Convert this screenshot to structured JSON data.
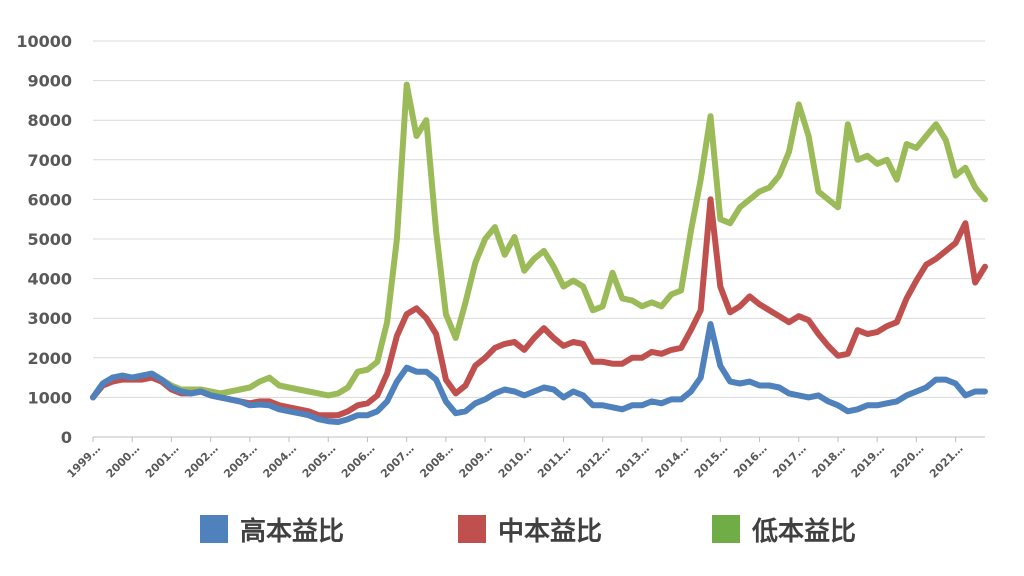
{
  "chart_data": {
    "type": "line",
    "title": "",
    "xlabel": "",
    "ylabel": "",
    "ylim": [
      0,
      10000
    ],
    "yticks": [
      0,
      1000,
      2000,
      3000,
      4000,
      5000,
      6000,
      7000,
      8000,
      9000,
      10000
    ],
    "xlim": [
      1999.0,
      2021.75
    ],
    "xtick_labels": [
      "1999…",
      "2000…",
      "2001…",
      "2002…",
      "2003…",
      "2004…",
      "2005…",
      "2006…",
      "2007…",
      "2008…",
      "2009…",
      "2010…",
      "2011…",
      "2012…",
      "2013…",
      "2014…",
      "2015…",
      "2016…",
      "2017…",
      "2018…",
      "2019…",
      "2020…",
      "2021…"
    ],
    "grid": true,
    "legend_position": "bottom",
    "x": [
      1999.0,
      1999.25,
      1999.5,
      1999.75,
      2000.0,
      2000.25,
      2000.5,
      2000.75,
      2001.0,
      2001.25,
      2001.5,
      2001.75,
      2002.0,
      2002.25,
      2002.5,
      2002.75,
      2003.0,
      2003.25,
      2003.5,
      2003.75,
      2004.0,
      2004.25,
      2004.5,
      2004.75,
      2005.0,
      2005.25,
      2005.5,
      2005.75,
      2006.0,
      2006.25,
      2006.5,
      2006.75,
      2007.0,
      2007.25,
      2007.5,
      2007.75,
      2008.0,
      2008.25,
      2008.5,
      2008.75,
      2009.0,
      2009.25,
      2009.5,
      2009.75,
      2010.0,
      2010.25,
      2010.5,
      2010.75,
      2011.0,
      2011.25,
      2011.5,
      2011.75,
      2012.0,
      2012.25,
      2012.5,
      2012.75,
      2013.0,
      2013.25,
      2013.5,
      2013.75,
      2014.0,
      2014.25,
      2014.5,
      2014.75,
      2015.0,
      2015.25,
      2015.5,
      2015.75,
      2016.0,
      2016.25,
      2016.5,
      2016.75,
      2017.0,
      2017.25,
      2017.5,
      2017.75,
      2018.0,
      2018.25,
      2018.5,
      2018.75,
      2019.0,
      2019.25,
      2019.5,
      2019.75,
      2020.0,
      2020.25,
      2020.5,
      2020.75,
      2021.0,
      2021.25,
      2021.5,
      2021.75
    ],
    "series": [
      {
        "name": "高本益比",
        "color": "#4f81bd",
        "values": [
          1000,
          1350,
          1500,
          1550,
          1500,
          1550,
          1600,
          1450,
          1250,
          1150,
          1100,
          1150,
          1050,
          1000,
          950,
          900,
          800,
          820,
          800,
          700,
          650,
          600,
          550,
          450,
          400,
          380,
          450,
          550,
          550,
          650,
          900,
          1400,
          1750,
          1650,
          1650,
          1450,
          900,
          600,
          650,
          850,
          950,
          1100,
          1200,
          1150,
          1050,
          1150,
          1250,
          1200,
          1000,
          1150,
          1050,
          800,
          800,
          750,
          700,
          800,
          800,
          900,
          850,
          950,
          950,
          1150,
          1500,
          2850,
          1800,
          1400,
          1350,
          1400,
          1300,
          1300,
          1250,
          1100,
          1050,
          1000,
          1050,
          900,
          800,
          650,
          700,
          800,
          800,
          850,
          900,
          1050,
          1150,
          1250,
          1450,
          1450,
          1350,
          1050,
          1150,
          1150
        ]
      },
      {
        "name": "中本益比",
        "color": "#c0504d",
        "values": [
          1000,
          1300,
          1400,
          1450,
          1450,
          1450,
          1500,
          1400,
          1200,
          1100,
          1100,
          1150,
          1050,
          1000,
          950,
          900,
          850,
          900,
          900,
          800,
          750,
          700,
          650,
          550,
          550,
          550,
          650,
          800,
          850,
          1050,
          1600,
          2550,
          3100,
          3250,
          3000,
          2600,
          1450,
          1100,
          1300,
          1800,
          2000,
          2250,
          2350,
          2400,
          2200,
          2500,
          2750,
          2500,
          2300,
          2400,
          2350,
          1900,
          1900,
          1850,
          1850,
          2000,
          2000,
          2150,
          2100,
          2200,
          2250,
          2700,
          3200,
          6000,
          3800,
          3150,
          3300,
          3550,
          3350,
          3200,
          3050,
          2900,
          3050,
          2950,
          2600,
          2300,
          2050,
          2100,
          2700,
          2600,
          2650,
          2800,
          2900,
          3500,
          3950,
          4350,
          4500,
          4700,
          4900,
          5400,
          3900,
          4300
        ]
      },
      {
        "name": "低本益比",
        "color": "#9bbb59",
        "values": [
          1000,
          1350,
          1450,
          1500,
          1450,
          1500,
          1550,
          1450,
          1300,
          1200,
          1200,
          1200,
          1150,
          1100,
          1150,
          1200,
          1250,
          1400,
          1500,
          1300,
          1250,
          1200,
          1150,
          1100,
          1050,
          1100,
          1250,
          1650,
          1700,
          1900,
          2900,
          5000,
          8900,
          7600,
          8000,
          5200,
          3100,
          2500,
          3400,
          4400,
          5000,
          5300,
          4600,
          5050,
          4200,
          4500,
          4700,
          4300,
          3800,
          3950,
          3800,
          3200,
          3300,
          4150,
          3500,
          3450,
          3300,
          3400,
          3300,
          3600,
          3700,
          5200,
          6500,
          8100,
          5500,
          5400,
          5800,
          6000,
          6200,
          6300,
          6600,
          7200,
          8400,
          7600,
          6200,
          6000,
          5800,
          7900,
          7000,
          7100,
          6900,
          7000,
          6500,
          7400,
          7300,
          7600,
          7900,
          7500,
          6600,
          6800,
          6300,
          6000
        ]
      }
    ]
  }
}
